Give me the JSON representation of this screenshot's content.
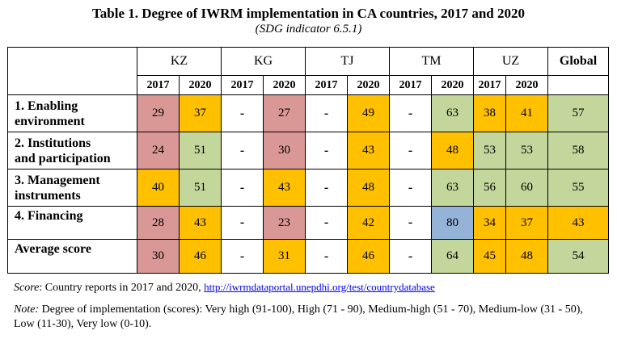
{
  "title": "Table 1. Degree of IWRM implementation in CA countries, 2017 and 2020",
  "subtitle": "(SDG indicator 6.5.1)",
  "countries": [
    "KZ",
    "KG",
    "TJ",
    "TM",
    "UZ"
  ],
  "global_label": "Global",
  "years": [
    "2017",
    "2020"
  ],
  "rows": [
    {
      "label_line1": "1. Enabling",
      "label_line2": "environment",
      "cells": [
        "29",
        "37",
        "-",
        "27",
        "-",
        "49",
        "-",
        "63",
        "38",
        "41"
      ],
      "global": "57"
    },
    {
      "label_line1": "2. Institutions",
      "label_line2": "and participation",
      "cells": [
        "24",
        "51",
        "-",
        "30",
        "-",
        "43",
        "-",
        "48",
        "53",
        "53"
      ],
      "global": "58"
    },
    {
      "label_line1": "3. Management",
      "label_line2": "instruments",
      "cells": [
        "40",
        "51",
        "-",
        "43",
        "-",
        "48",
        "-",
        "63",
        "56",
        "60"
      ],
      "global": "55"
    },
    {
      "label_line1": "4. Financing",
      "label_line2": "",
      "cells": [
        "28",
        "43",
        "-",
        "23",
        "-",
        "42",
        "-",
        "80",
        "34",
        "37"
      ],
      "global": "43"
    },
    {
      "label_line1": "Average score",
      "label_line2": "",
      "cells": [
        "30",
        "46",
        "-",
        "31",
        "-",
        "46",
        "-",
        "64",
        "45",
        "48"
      ],
      "global": "54"
    }
  ],
  "colors": {
    "very_high_blue": "#95b3d7",
    "medium_high_green": "#c3d69b",
    "medium_orange": "#ffc000",
    "low_red": "#d99795"
  },
  "source": {
    "label": "Score",
    "text": ": Country reports in 2017 and 2020, ",
    "link": "http://iwrmdataportal.unepdhi.org/test/countrydatabase"
  },
  "note": {
    "label": "Note:",
    "text": " Degree of implementation (scores): Very high (91-100), High (71 - 90), Medium-high (51 - 70), Medium-low (31 - 50), Low (11-30), Very low (0-10)."
  }
}
